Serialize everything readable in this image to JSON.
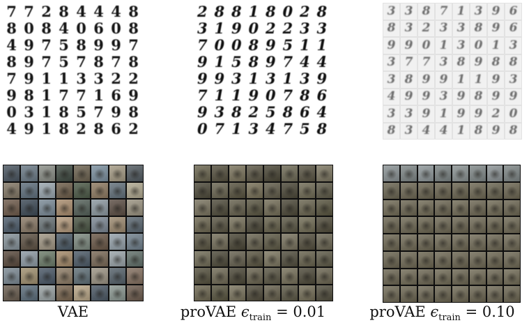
{
  "captions": {
    "vae": "VAE",
    "pro01": {
      "prefix": "proVAE ",
      "symbol": "ϵ",
      "subscript": "train",
      "suffix": " = 0.01"
    },
    "pro10": {
      "prefix": "proVAE ",
      "symbol": "ϵ",
      "subscript": "train",
      "suffix": " = 0.10"
    }
  },
  "mnist": {
    "vae": [
      [
        "7",
        "7",
        "2",
        "8",
        "4",
        "4",
        "4",
        "8"
      ],
      [
        "8",
        "0",
        "8",
        "4",
        "0",
        "6",
        "0",
        "8"
      ],
      [
        "4",
        "9",
        "7",
        "5",
        "8",
        "9",
        "9",
        "7"
      ],
      [
        "8",
        "9",
        "7",
        "5",
        "7",
        "8",
        "7",
        "8"
      ],
      [
        "7",
        "9",
        "1",
        "1",
        "3",
        "3",
        "2",
        "2"
      ],
      [
        "9",
        "8",
        "1",
        "7",
        "7",
        "1",
        "6",
        "9"
      ],
      [
        "0",
        "3",
        "1",
        "8",
        "5",
        "7",
        "9",
        "8"
      ],
      [
        "4",
        "9",
        "1",
        "8",
        "2",
        "8",
        "6",
        "2"
      ]
    ],
    "pro01": [
      [
        "2",
        "8",
        "8",
        "1",
        "8",
        "0",
        "2",
        "8"
      ],
      [
        "3",
        "1",
        "9",
        "0",
        "2",
        "2",
        "3",
        "3"
      ],
      [
        "7",
        "0",
        "0",
        "8",
        "9",
        "5",
        "1",
        "1"
      ],
      [
        "9",
        "1",
        "5",
        "8",
        "9",
        "7",
        "4",
        "4"
      ],
      [
        "9",
        "9",
        "3",
        "1",
        "3",
        "1",
        "3",
        "9"
      ],
      [
        "7",
        "1",
        "1",
        "9",
        "0",
        "7",
        "8",
        "6"
      ],
      [
        "9",
        "3",
        "8",
        "2",
        "5",
        "8",
        "6",
        "4"
      ],
      [
        "0",
        "7",
        "1",
        "3",
        "4",
        "7",
        "5",
        "8"
      ]
    ],
    "pro10": [
      [
        "3",
        "3",
        "8",
        "7",
        "1",
        "3",
        "9",
        "6"
      ],
      [
        "8",
        "3",
        "2",
        "3",
        "3",
        "8",
        "9",
        "6"
      ],
      [
        "9",
        "9",
        "0",
        "1",
        "3",
        "0",
        "1",
        "3"
      ],
      [
        "3",
        "7",
        "7",
        "3",
        "8",
        "9",
        "8",
        "8"
      ],
      [
        "3",
        "8",
        "9",
        "9",
        "1",
        "1",
        "9",
        "3"
      ],
      [
        "4",
        "9",
        "9",
        "3",
        "9",
        "8",
        "9",
        "9"
      ],
      [
        "3",
        "3",
        "9",
        "1",
        "9",
        "9",
        "2",
        "0"
      ],
      [
        "8",
        "3",
        "4",
        "4",
        "1",
        "8",
        "9",
        "8"
      ]
    ]
  },
  "cifar": {
    "vae_colors": [
      "#4a5560",
      "#6b7a86",
      "#8a8e86",
      "#3f4a42",
      "#6c6350",
      "#7b8f9e",
      "#a39a84",
      "#525a60",
      "#837766",
      "#5f6f7c",
      "#9aa6ae",
      "#6e5e4a",
      "#4d5a48",
      "#8d7a62",
      "#63707a",
      "#b0a890",
      "#6f5c4c",
      "#3d4a56",
      "#7a8a96",
      "#a88c6e",
      "#56625a",
      "#8c98a0",
      "#5c4e44",
      "#9a9280",
      "#4f5e6c",
      "#8a7a68",
      "#6a7478",
      "#b39a7c",
      "#4a5644",
      "#7c8894",
      "#9c8a70",
      "#5a6670",
      "#86929a",
      "#5e5244",
      "#a09684",
      "#4c5a66",
      "#7e8a80",
      "#6a5848",
      "#94a0a8",
      "#70808c",
      "#5a4a3e",
      "#8e9aa4",
      "#6c7c6a",
      "#a48a6a",
      "#4e5c68",
      "#7a6a58",
      "#9aa4a8",
      "#62706a",
      "#7c8a94",
      "#a09070",
      "#4a5866",
      "#8e7c66",
      "#607078",
      "#9c9484",
      "#56626a",
      "#847060",
      "#6a5e50",
      "#5c6c7a",
      "#9aa2a4",
      "#7a6650",
      "#b8a688",
      "#4c5864",
      "#8a9690",
      "#6c5c4e"
    ],
    "pro01_colors": [
      "#6b6650",
      "#55503f",
      "#7a735c",
      "#5c5746",
      "#4a4636",
      "#6e6a56",
      "#5a5544",
      "#7d7762",
      "#4e4a3a",
      "#6a6552",
      "#58533f",
      "#777058",
      "#625d4a",
      "#4c4838",
      "#706b56",
      "#5e5a48",
      "#7a7460",
      "#504c3c",
      "#66614e",
      "#5a5642",
      "#746e58",
      "#4c4838",
      "#6a6550",
      "#58543f",
      "#6e6852",
      "#5a5644",
      "#78725c",
      "#4e4a3a",
      "#66614c",
      "#5c5846",
      "#726c56",
      "#504c3a",
      "#5c5744",
      "#746e5a",
      "#4a4636",
      "#6a6552",
      "#5e5a46",
      "#78725e",
      "#544f3e",
      "#6c6754",
      "#726c58",
      "#4e4a3a",
      "#666150",
      "#5a5642",
      "#7c7660",
      "#524e3e",
      "#68634e",
      "#5e5a48",
      "#56523f",
      "#706a56",
      "#4c4838",
      "#6a6450",
      "#5a5644",
      "#76705a",
      "#4e4a3a",
      "#6c6652",
      "#6e6852",
      "#58543f",
      "#7a745e",
      "#504c3c",
      "#68624e",
      "#5c5846",
      "#746e58",
      "#524e3e"
    ],
    "pro10_colors": [
      "#8a9294",
      "#7e8686",
      "#8e9698",
      "#7c8484",
      "#8a9292",
      "#808888",
      "#8c9496",
      "#7e8686",
      "#6a6552",
      "#6e6854",
      "#6a6450",
      "#6c6652",
      "#6a6450",
      "#6e6854",
      "#6a6552",
      "#6c6652",
      "#716b57",
      "#6d6753",
      "#716b57",
      "#6d6753",
      "#716b57",
      "#6d6753",
      "#716b57",
      "#6d6753",
      "#6b6551",
      "#6f6955",
      "#6b6551",
      "#6f6955",
      "#6b6551",
      "#6f6955",
      "#6b6551",
      "#6f6955",
      "#6d6753",
      "#716b57",
      "#6d6753",
      "#716b57",
      "#6d6753",
      "#716b57",
      "#6d6753",
      "#716b57",
      "#6b6551",
      "#6f6955",
      "#6b6551",
      "#6f6955",
      "#6b6551",
      "#6f6955",
      "#6b6551",
      "#6f6955",
      "#6d6753",
      "#716b57",
      "#6d6753",
      "#716b57",
      "#6d6753",
      "#716b57",
      "#6d6753",
      "#716b57",
      "#6f6955",
      "#6b6551",
      "#6f6955",
      "#6b6551",
      "#6f6955",
      "#6b6551",
      "#6f6955",
      "#6b6551"
    ]
  }
}
